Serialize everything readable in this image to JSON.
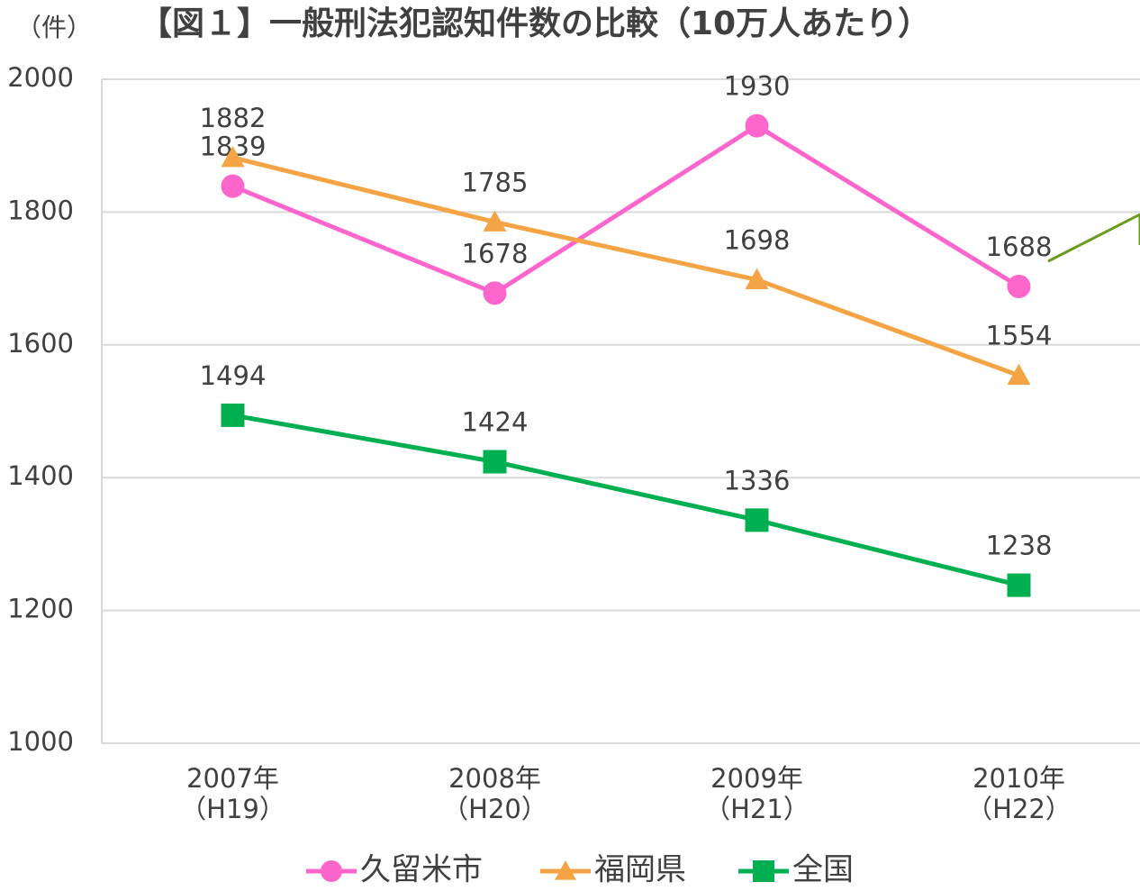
{
  "chart_data": {
    "type": "line",
    "title": "【図１】一般刑法犯認知件数の比較（10万人あたり）",
    "y_label": "（件）",
    "categories": [
      "2007年\n（H19）",
      "2008年\n（H20）",
      "2009年\n（H21）",
      "2010年\n（H22）"
    ],
    "series": [
      {
        "name": "久留米市",
        "color": "#ff66cc",
        "marker": "circle",
        "values": [
          1839,
          1678,
          1930,
          1688
        ]
      },
      {
        "name": "福岡県",
        "color": "#f5a445",
        "marker": "triangle",
        "values": [
          1882,
          1785,
          1698,
          1554
        ]
      },
      {
        "name": "全国",
        "color": "#00b050",
        "marker": "square",
        "values": [
          1494,
          1424,
          1336,
          1238
        ]
      }
    ],
    "ylim": [
      1000,
      2000
    ],
    "yticks": [
      1000,
      1200,
      1400,
      1600,
      1800,
      2000
    ],
    "grid": true,
    "legend": "bottom"
  }
}
